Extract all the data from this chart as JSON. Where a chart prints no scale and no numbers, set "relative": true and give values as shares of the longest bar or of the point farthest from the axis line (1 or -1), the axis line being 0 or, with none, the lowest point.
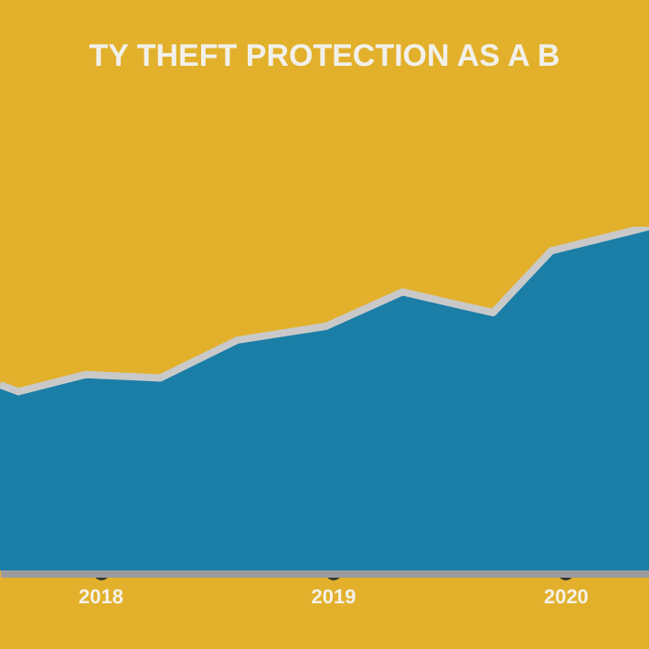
{
  "chart_data": {
    "type": "area",
    "title": "TY THEFT PROTECTION AS A B",
    "relative": true,
    "x": [
      2017.57,
      2017.65,
      2017.94,
      2018.26,
      2018.59,
      2018.97,
      2019.3,
      2019.69,
      2019.94,
      2020.36
    ],
    "xlim": [
      2017.57,
      2020.36
    ],
    "xticks": [
      2018,
      2019,
      2020
    ],
    "series": [
      {
        "color": "#1b7ea6",
        "values": [
          0.54,
          0.52,
          0.57,
          0.56,
          0.67,
          0.71,
          0.81,
          0.75,
          0.93,
          1.0
        ]
      }
    ]
  }
}
